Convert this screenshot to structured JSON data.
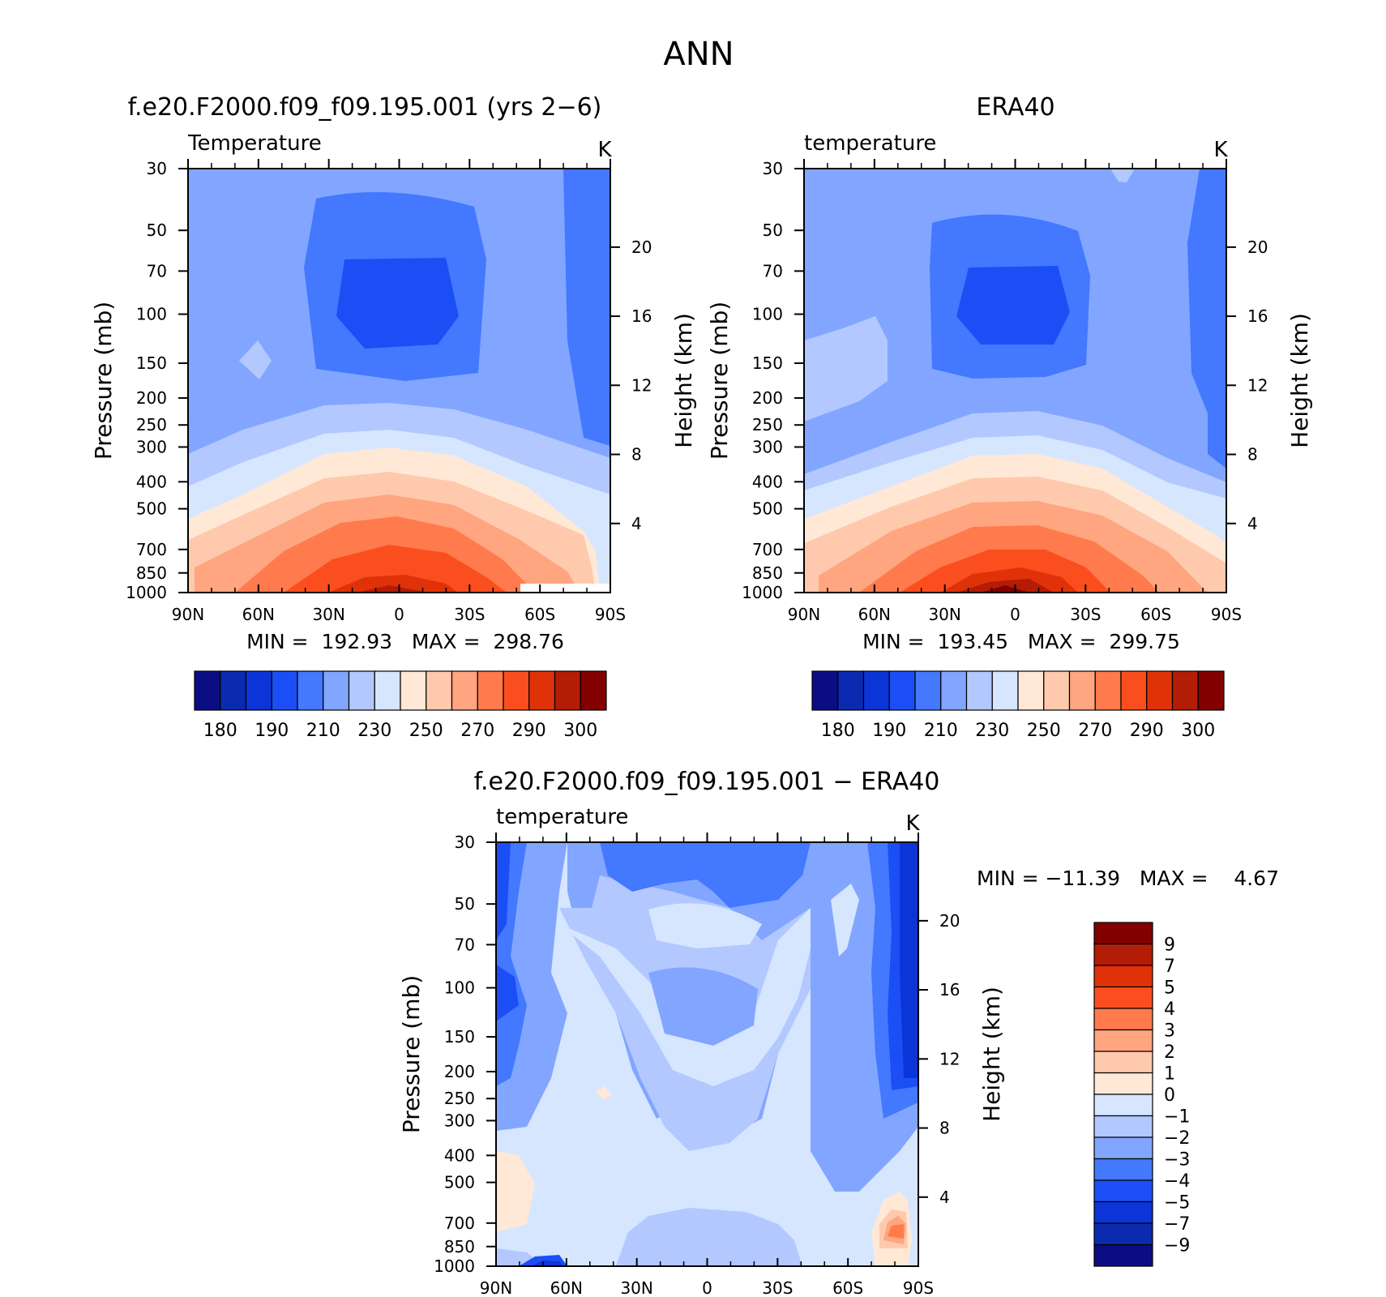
{
  "figure_title": "ANN",
  "colors": {
    "abs_levels": [
      "#0a0e82",
      "#0a2bb0",
      "#0c35d8",
      "#1b4ff5",
      "#4378ff",
      "#82a6ff",
      "#b2c8ff",
      "#d6e6ff",
      "#ffe8d6",
      "#ffc9ad",
      "#ffa57f",
      "#ff7a4d",
      "#fb4e1f",
      "#e03208",
      "#b31c06",
      "#820000"
    ],
    "diff_levels": [
      "#0a0e82",
      "#0a2bb0",
      "#0c35d8",
      "#1b4ff5",
      "#4378ff",
      "#82a6ff",
      "#b2c8ff",
      "#d6e6ff",
      "#ffe8d6",
      "#ffc9ad",
      "#ffa57f",
      "#ff7a4d",
      "#fb4e1f",
      "#e03208",
      "#b31c06",
      "#820000"
    ]
  },
  "chart_data": [
    {
      "type": "heatmap",
      "title": "f.e20.F2000.f09_f09.195.001 (yrs 2−6)",
      "left_label": "Temperature",
      "units": "K",
      "xlabel": "",
      "ylabel": "Pressure (mb)",
      "ylabel_right": "Height (km)",
      "x_ticklabels": [
        "90N",
        "60N",
        "30N",
        "0",
        "30S",
        "60S",
        "90S"
      ],
      "x_values": [
        90,
        60,
        30,
        0,
        -30,
        -60,
        -90
      ],
      "ylim": [
        1000,
        30
      ],
      "yscale": "log",
      "y_ticklabels": [
        "30",
        "50",
        "70",
        "100",
        "150",
        "200",
        "250",
        "300",
        "400",
        "500",
        "700",
        "850",
        "1000"
      ],
      "y_values": [
        30,
        50,
        70,
        100,
        150,
        200,
        250,
        300,
        400,
        500,
        700,
        850,
        1000
      ],
      "height_ticklabels": [
        "4",
        "8",
        "12",
        "16",
        "20"
      ],
      "height_values": [
        4,
        8,
        12,
        16,
        20
      ],
      "min_text": "MIN =  192.93   MAX =  298.76",
      "min": 192.93,
      "max": 298.76,
      "colorbar_labels": [
        "180",
        "190",
        "210",
        "230",
        "250",
        "270",
        "290",
        "300"
      ],
      "grid": false
    },
    {
      "type": "heatmap",
      "title": "ERA40",
      "left_label": "temperature",
      "units": "K",
      "xlabel": "",
      "ylabel": "Pressure (mb)",
      "ylabel_right": "Height (km)",
      "x_ticklabels": [
        "90N",
        "60N",
        "30N",
        "0",
        "30S",
        "60S",
        "90S"
      ],
      "x_values": [
        90,
        60,
        30,
        0,
        -30,
        -60,
        -90
      ],
      "ylim": [
        1000,
        30
      ],
      "yscale": "log",
      "y_ticklabels": [
        "30",
        "50",
        "70",
        "100",
        "150",
        "200",
        "250",
        "300",
        "400",
        "500",
        "700",
        "850",
        "1000"
      ],
      "y_values": [
        30,
        50,
        70,
        100,
        150,
        200,
        250,
        300,
        400,
        500,
        700,
        850,
        1000
      ],
      "height_ticklabels": [
        "4",
        "8",
        "12",
        "16",
        "20"
      ],
      "height_values": [
        4,
        8,
        12,
        16,
        20
      ],
      "min_text": "MIN =  193.45   MAX =  299.75",
      "min": 193.45,
      "max": 299.75,
      "colorbar_labels": [
        "180",
        "190",
        "210",
        "230",
        "250",
        "270",
        "290",
        "300"
      ],
      "grid": false
    },
    {
      "type": "heatmap",
      "title": "f.e20.F2000.f09_f09.195.001 − ERA40",
      "left_label": "temperature",
      "units": "K",
      "xlabel": "",
      "ylabel": "Pressure (mb)",
      "ylabel_right": "Height (km)",
      "x_ticklabels": [
        "90N",
        "60N",
        "30N",
        "0",
        "30S",
        "60S",
        "90S"
      ],
      "x_values": [
        90,
        60,
        30,
        0,
        -30,
        -60,
        -90
      ],
      "ylim": [
        1000,
        30
      ],
      "yscale": "log",
      "y_ticklabels": [
        "30",
        "50",
        "70",
        "100",
        "150",
        "200",
        "250",
        "300",
        "400",
        "500",
        "700",
        "850",
        "1000"
      ],
      "y_values": [
        30,
        50,
        70,
        100,
        150,
        200,
        250,
        300,
        400,
        500,
        700,
        850,
        1000
      ],
      "height_ticklabels": [
        "4",
        "8",
        "12",
        "16",
        "20"
      ],
      "height_values": [
        4,
        8,
        12,
        16,
        20
      ],
      "min_text": "MIN = −11.39   MAX =    4.67",
      "min": -11.39,
      "max": 4.67,
      "colorbar_labels": [
        "9",
        "7",
        "5",
        "4",
        "3",
        "2",
        "1",
        "0",
        "−1",
        "−2",
        "−3",
        "−4",
        "−5",
        "−7",
        "−9"
      ],
      "grid": false
    }
  ]
}
